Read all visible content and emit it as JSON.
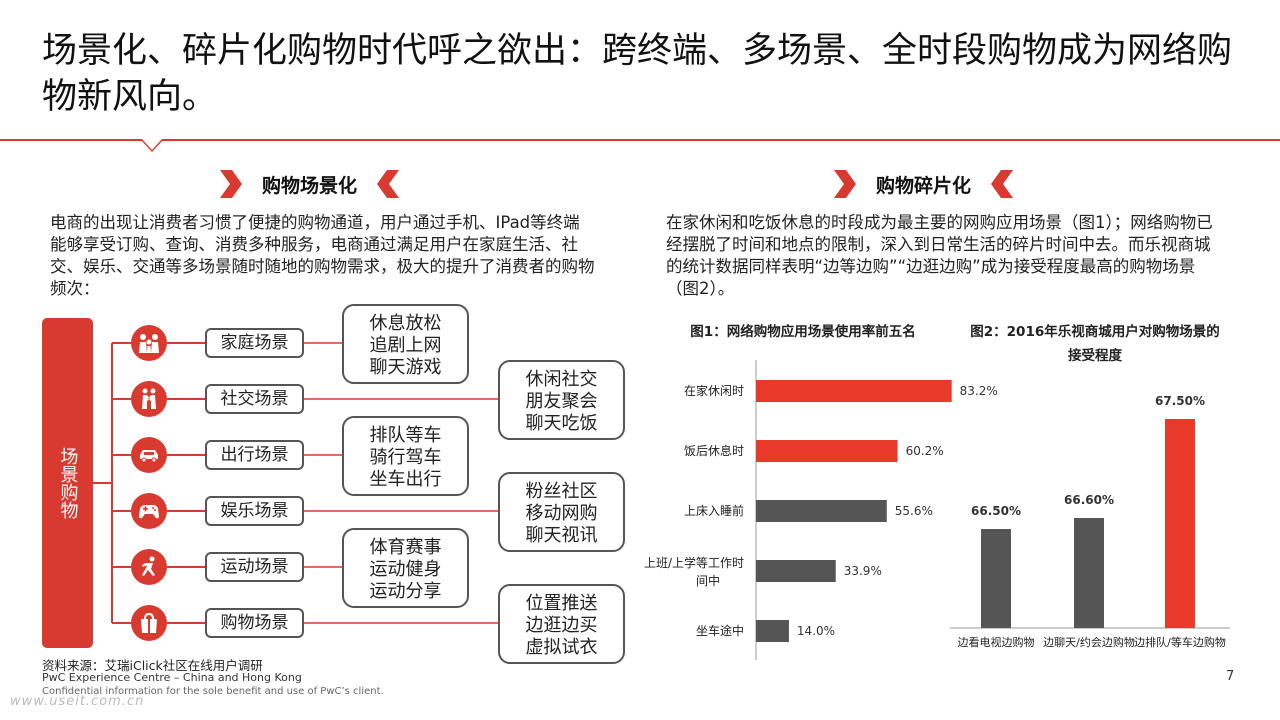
{
  "title": "场景化、碎片化购物时代呼之欲出：跨终端、多场景、全时段购物成为网络购物新风向。",
  "left": {
    "heading": "购物场景化",
    "paragraph": "电商的出现让消费者习惯了便捷的购物通道，用户通过手机、IPad等终端能够享受订购、查询、消费多种服务，电商通过满足用户在家庭生活、社交、娱乐、交通等多场景随时随地的购物需求，极大的提升了消费者的购物频次：",
    "root_label": "场景购物",
    "scenes": [
      {
        "label": "家庭场景",
        "icon": "family-icon",
        "items": [
          "休息放松",
          "追剧上网",
          "聊天游戏"
        ]
      },
      {
        "label": "社交场景",
        "icon": "social-icon",
        "items": [
          "休闲社交",
          "朋友聚会",
          "聊天吃饭"
        ]
      },
      {
        "label": "出行场景",
        "icon": "car-icon",
        "items": [
          "排队等车",
          "骑行驾车",
          "坐车出行"
        ]
      },
      {
        "label": "娱乐场景",
        "icon": "gamepad-icon",
        "items": [
          "粉丝社区",
          "移动网购",
          "聊天视讯"
        ]
      },
      {
        "label": "运动场景",
        "icon": "runner-icon",
        "items": [
          "体育赛事",
          "运动健身",
          "运动分享"
        ]
      },
      {
        "label": "购物场景",
        "icon": "shopping-bag-icon",
        "items": [
          "位置推送",
          "边逛边买",
          "虚拟试衣"
        ]
      }
    ]
  },
  "right": {
    "heading": "购物碎片化",
    "paragraph": "在家休闲和吃饭休息的时段成为最主要的网购应用场景（图1）；网络购物已经摆脱了时间和地点的限制，深入到日常生活的碎片时间中去。而乐视商城的统计数据同样表明“边等边购”“边逛边购”成为接受程度最高的购物场景（图2）。"
  },
  "chart_data": [
    {
      "type": "bar",
      "orientation": "horizontal",
      "title": "图1：网络购物应用场景使用率前五名",
      "categories": [
        "在家休闲时",
        "饭后休息时",
        "上床入睡前",
        "上班/上学等工作时间中",
        "坐车途中"
      ],
      "values": [
        83.2,
        60.2,
        55.6,
        33.9,
        14.0
      ],
      "value_labels": [
        "83.2%",
        "60.2%",
        "55.6%",
        "33.9%",
        "14.0%"
      ],
      "bar_colors": [
        "#e8392b",
        "#e8392b",
        "#555555",
        "#555555",
        "#555555"
      ],
      "xlim": [
        0,
        100
      ]
    },
    {
      "type": "bar",
      "orientation": "vertical",
      "title": "图2：2016年乐视商城用户对购物场景的接受程度",
      "categories": [
        "边看电视边购物",
        "边聊天/约会边购物",
        "边排队/等车边购物"
      ],
      "values": [
        66.5,
        66.6,
        67.5
      ],
      "value_labels": [
        "66.50%",
        "66.60%",
        "67.50%"
      ],
      "bar_colors": [
        "#555555",
        "#555555",
        "#e8392b"
      ],
      "ylim": [
        65.6,
        67.6
      ]
    }
  ],
  "footer": {
    "source": "资料来源：艾瑞iClick社区在线用户调研",
    "org": "PwC Experience Centre – China and Hong Kong",
    "confidential": "Confidential information for the sole benefit and use of PwC’s client.",
    "watermark": "www.useit.com.cn",
    "page": "7"
  },
  "colors": {
    "accent": "#d93a2f",
    "dark": "#555555"
  }
}
